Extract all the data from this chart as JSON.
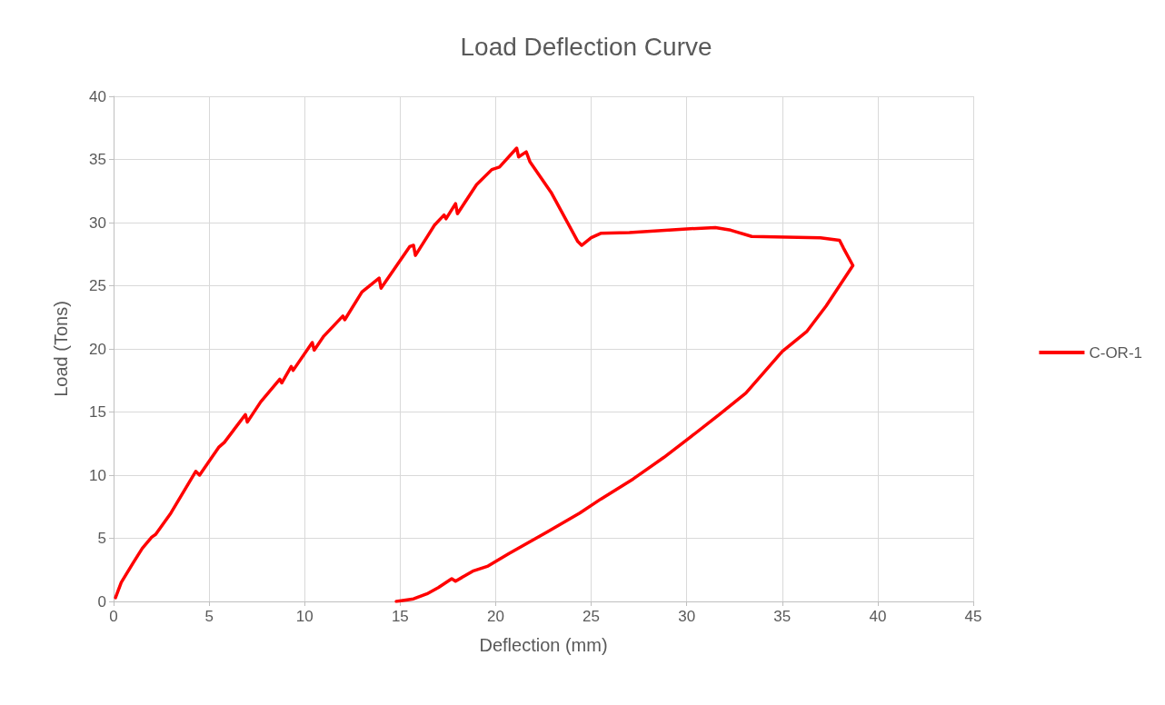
{
  "chart_data": {
    "type": "line",
    "title": "Load Deflection Curve",
    "xlabel": "Deflection (mm)",
    "ylabel": "Load (Tons)",
    "xlim": [
      0,
      45
    ],
    "xticks": [
      0,
      5,
      10,
      15,
      20,
      25,
      30,
      35,
      40,
      45
    ],
    "ylim": [
      0,
      40
    ],
    "yticks": [
      0,
      5,
      10,
      15,
      20,
      25,
      30,
      35,
      40
    ],
    "grid": true,
    "legend": "right",
    "marker": "none",
    "line_style": "solid",
    "series": [
      {
        "name": "C-OR-1",
        "color": "#ff0000",
        "x": [
          0.1,
          0.4,
          1,
          1.5,
          2,
          2.2,
          3,
          4.3,
          4.5,
          5.5,
          5.8,
          6.9,
          7,
          7.7,
          8.7,
          8.8,
          9.3,
          9.4,
          10.4,
          10.5,
          11,
          12,
          12.1,
          13,
          13.9,
          14,
          15.5,
          15.7,
          15.8,
          16.8,
          17.3,
          17.4,
          17.9,
          18,
          19,
          19.8,
          20.2,
          21.1,
          21.2,
          21.6,
          21.8,
          22.9,
          24.3,
          24.5,
          25,
          25.5,
          27,
          30,
          31.5,
          32.3,
          33.4,
          37,
          38,
          38.2,
          38.7,
          37.3,
          36.3,
          35,
          33.1,
          31.7,
          30.1,
          28.8,
          27.2,
          25.5,
          24.4,
          22.7,
          20.7,
          19.6,
          18.8,
          17.9,
          17.7,
          17,
          16.4,
          15.7,
          14.8
        ],
        "values": [
          0.3,
          1.5,
          3,
          4.2,
          5.1,
          5.3,
          7,
          10.3,
          10,
          12.2,
          12.6,
          14.8,
          14.2,
          15.8,
          17.6,
          17.3,
          18.6,
          18.3,
          20.5,
          19.9,
          21,
          22.6,
          22.3,
          24.5,
          25.6,
          24.8,
          28.1,
          28.2,
          27.4,
          29.8,
          30.6,
          30.3,
          31.5,
          30.7,
          33,
          34.2,
          34.4,
          35.9,
          35.2,
          35.6,
          34.8,
          32.4,
          28.5,
          28.2,
          28.8,
          29.15,
          29.2,
          29.5,
          29.6,
          29.4,
          28.9,
          28.8,
          28.6,
          28,
          26.6,
          23.4,
          21.4,
          19.8,
          16.5,
          14.8,
          12.9,
          11.4,
          9.7,
          8.1,
          7,
          5.5,
          3.8,
          2.8,
          2.4,
          1.6,
          1.8,
          1.1,
          0.6,
          0.2,
          0
        ]
      }
    ]
  }
}
